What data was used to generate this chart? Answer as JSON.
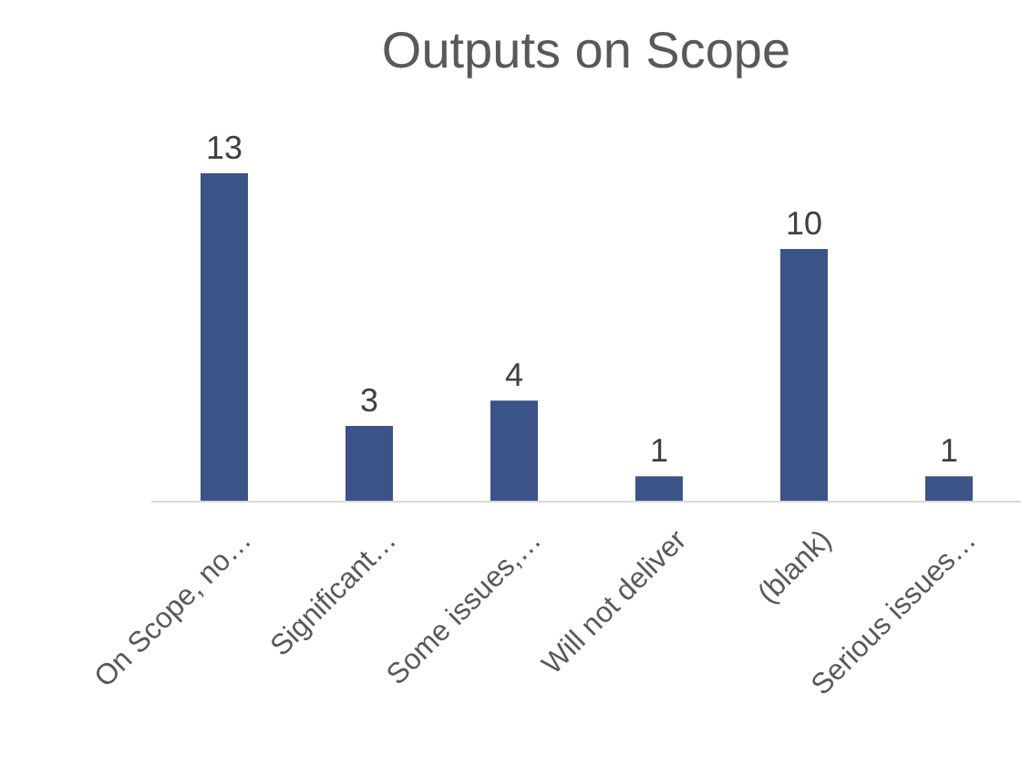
{
  "chart_data": {
    "type": "bar",
    "title": "Outputs on Scope",
    "categories": [
      "On Scope, no…",
      "Significant…",
      "Some issues,…",
      "Will not deliver",
      "(blank)",
      "Serious issues…"
    ],
    "values": [
      13,
      3,
      4,
      1,
      10,
      1
    ],
    "color": "#3b5387",
    "data_labels": true
  }
}
